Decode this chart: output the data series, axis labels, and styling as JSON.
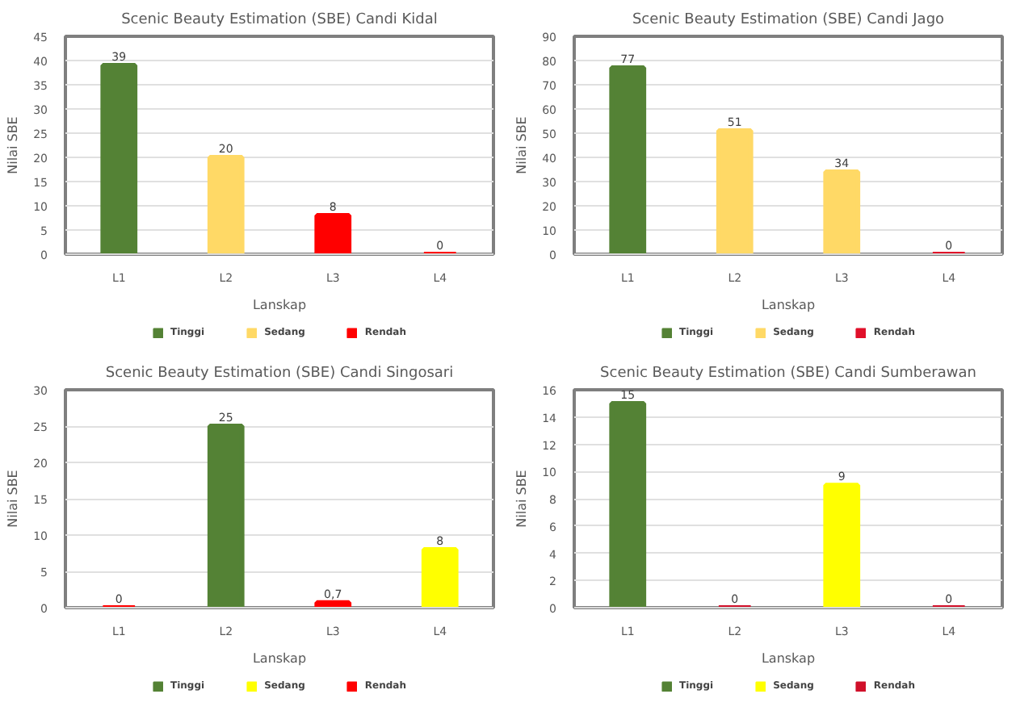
{
  "chart_data": [
    {
      "type": "bar",
      "title": "Scenic Beauty Estimation (SBE) Candi Kidal",
      "xlabel": "Lanskap",
      "ylabel": "Nilai SBE",
      "categories": [
        "L1",
        "L2",
        "L3",
        "L4"
      ],
      "ylim": [
        0,
        45
      ],
      "yticks": [
        0,
        5,
        10,
        15,
        20,
        25,
        30,
        35,
        40,
        45
      ],
      "grid": "y",
      "legend": "bottom",
      "series": [
        {
          "name": "Tinggi",
          "color": "#548235",
          "values": [
            39,
            null,
            null,
            null
          ],
          "value_labels": [
            "39",
            null,
            null,
            null
          ]
        },
        {
          "name": "Sedang",
          "color": "#ffd966",
          "values": [
            null,
            20,
            null,
            null
          ],
          "value_labels": [
            null,
            "20",
            null,
            null
          ]
        },
        {
          "name": "Rendah",
          "color": "#ff0000",
          "values": [
            null,
            null,
            8,
            0
          ],
          "value_labels": [
            null,
            null,
            "8",
            "0"
          ]
        }
      ]
    },
    {
      "type": "bar",
      "title": "Scenic Beauty Estimation (SBE) Candi Jago",
      "xlabel": "Lanskap",
      "ylabel": "Nilai SBE",
      "categories": [
        "L1",
        "L2",
        "L3",
        "L4"
      ],
      "ylim": [
        0,
        90
      ],
      "yticks": [
        0,
        10,
        20,
        30,
        40,
        50,
        60,
        70,
        80,
        90
      ],
      "grid": "y",
      "legend": "bottom",
      "series": [
        {
          "name": "Tinggi",
          "color": "#548235",
          "values": [
            77,
            null,
            null,
            null
          ],
          "value_labels": [
            "77",
            null,
            null,
            null
          ]
        },
        {
          "name": "Sedang",
          "color": "#ffd966",
          "values": [
            null,
            51,
            34,
            null
          ],
          "value_labels": [
            null,
            "51",
            "34",
            null
          ]
        },
        {
          "name": "Rendah",
          "color": "#e0102a",
          "values": [
            null,
            null,
            null,
            0
          ],
          "value_labels": [
            null,
            null,
            null,
            "0"
          ]
        }
      ]
    },
    {
      "type": "bar",
      "title": "Scenic Beauty Estimation (SBE) Candi Singosari",
      "xlabel": "Lanskap",
      "ylabel": "Nilai SBE",
      "categories": [
        "L1",
        "L2",
        "L3",
        "L4"
      ],
      "ylim": [
        0,
        30
      ],
      "yticks": [
        0,
        5,
        10,
        15,
        20,
        25,
        30
      ],
      "grid": "y",
      "legend": "bottom",
      "series": [
        {
          "name": "Tinggi",
          "color": "#548235",
          "values": [
            null,
            25,
            null,
            null
          ],
          "value_labels": [
            null,
            "25",
            null,
            null
          ]
        },
        {
          "name": "Sedang",
          "color": "#ffff00",
          "values": [
            null,
            null,
            null,
            8
          ],
          "value_labels": [
            null,
            null,
            null,
            "8"
          ]
        },
        {
          "name": "Rendah",
          "color": "#ff0000",
          "values": [
            0,
            null,
            0.7,
            null
          ],
          "value_labels": [
            "0",
            null,
            "0,7",
            null
          ]
        }
      ]
    },
    {
      "type": "bar",
      "title": "Scenic Beauty Estimation (SBE) Candi Sumberawan",
      "xlabel": "Lanskap",
      "ylabel": "Nilai SBE",
      "categories": [
        "L1",
        "L2",
        "L3",
        "L4"
      ],
      "ylim": [
        0,
        16
      ],
      "yticks": [
        0,
        2,
        4,
        6,
        8,
        10,
        12,
        14,
        16
      ],
      "grid": "y",
      "legend": "bottom",
      "series": [
        {
          "name": "Tinggi",
          "color": "#548235",
          "values": [
            15,
            null,
            null,
            null
          ],
          "value_labels": [
            "15",
            null,
            null,
            null
          ]
        },
        {
          "name": "Sedang",
          "color": "#ffff00",
          "values": [
            null,
            null,
            9,
            null
          ],
          "value_labels": [
            null,
            null,
            "9",
            null
          ]
        },
        {
          "name": "Rendah",
          "color": "#d0102a",
          "values": [
            null,
            0,
            null,
            0
          ],
          "value_labels": [
            null,
            "0",
            null,
            "0"
          ]
        }
      ]
    }
  ]
}
